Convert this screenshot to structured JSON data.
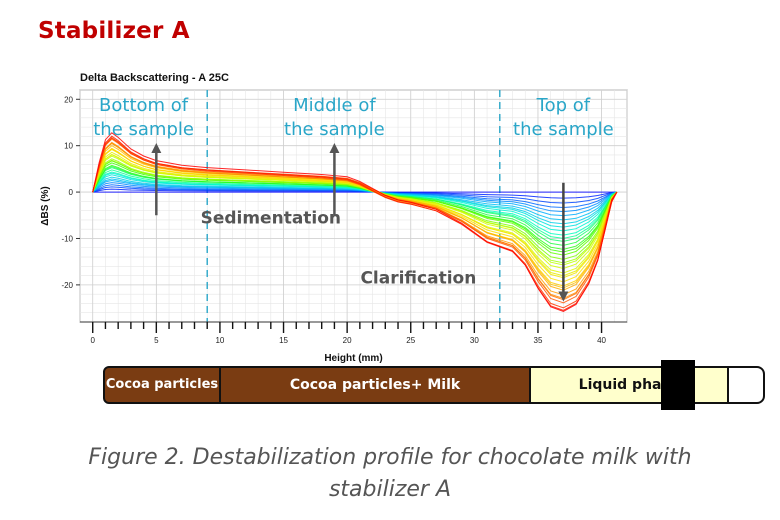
{
  "heading": "Stabilizer A",
  "caption_line1": "Figure 2. Destabilization profile for chocolate milk with",
  "caption_line2": "stabilizer A",
  "tube": {
    "segments": [
      "Cocoa particles",
      "Cocoa particles+ Milk",
      "Liquid phase"
    ]
  },
  "chart_data": {
    "type": "line",
    "title": "Delta Backscattering - A 25C",
    "xlabel": "Height (mm)",
    "ylabel": "ΔBS (%)",
    "xlim": [
      -1,
      42
    ],
    "ylim": [
      -28,
      22
    ],
    "xticks": [
      0,
      5,
      10,
      15,
      20,
      25,
      30,
      35,
      40
    ],
    "yticks": [
      20,
      10,
      0,
      -10,
      -20
    ],
    "grid": true,
    "zone_dividers_x": [
      9,
      32
    ],
    "zone_labels": [
      {
        "text": "Bottom of the sample",
        "x": 4
      },
      {
        "text": "Middle of the sample",
        "x": 19
      },
      {
        "text": "Top of the sample",
        "x": 37
      }
    ],
    "annotations": [
      {
        "text": "Sedimentation",
        "arrows_up_at_x": [
          5,
          19
        ]
      },
      {
        "text": "Clarification",
        "arrow_down_at_x": 37
      }
    ],
    "final_profile": {
      "x": [
        0,
        0.5,
        1,
        1.5,
        2,
        3,
        4,
        5,
        7,
        9,
        12,
        15,
        18,
        20,
        21,
        22,
        23,
        24,
        25,
        27,
        29,
        31,
        33,
        34,
        35,
        36,
        37,
        38,
        39,
        39.7,
        40.3,
        40.8,
        41.2
      ],
      "y": [
        0,
        6,
        11,
        12.5,
        11.5,
        9,
        7.5,
        6.5,
        5.5,
        5,
        4.5,
        4,
        3.5,
        3,
        2,
        0.5,
        -1,
        -2,
        -2.5,
        -4,
        -7,
        -11,
        -13,
        -16,
        -21,
        -25,
        -26,
        -24.5,
        -20,
        -15,
        -8,
        -2,
        0
      ]
    },
    "color_scale": [
      "#0000ff",
      "#00aaff",
      "#00ffcc",
      "#33ff00",
      "#ccff00",
      "#ffdd00",
      "#ff8800",
      "#ff0000"
    ]
  }
}
